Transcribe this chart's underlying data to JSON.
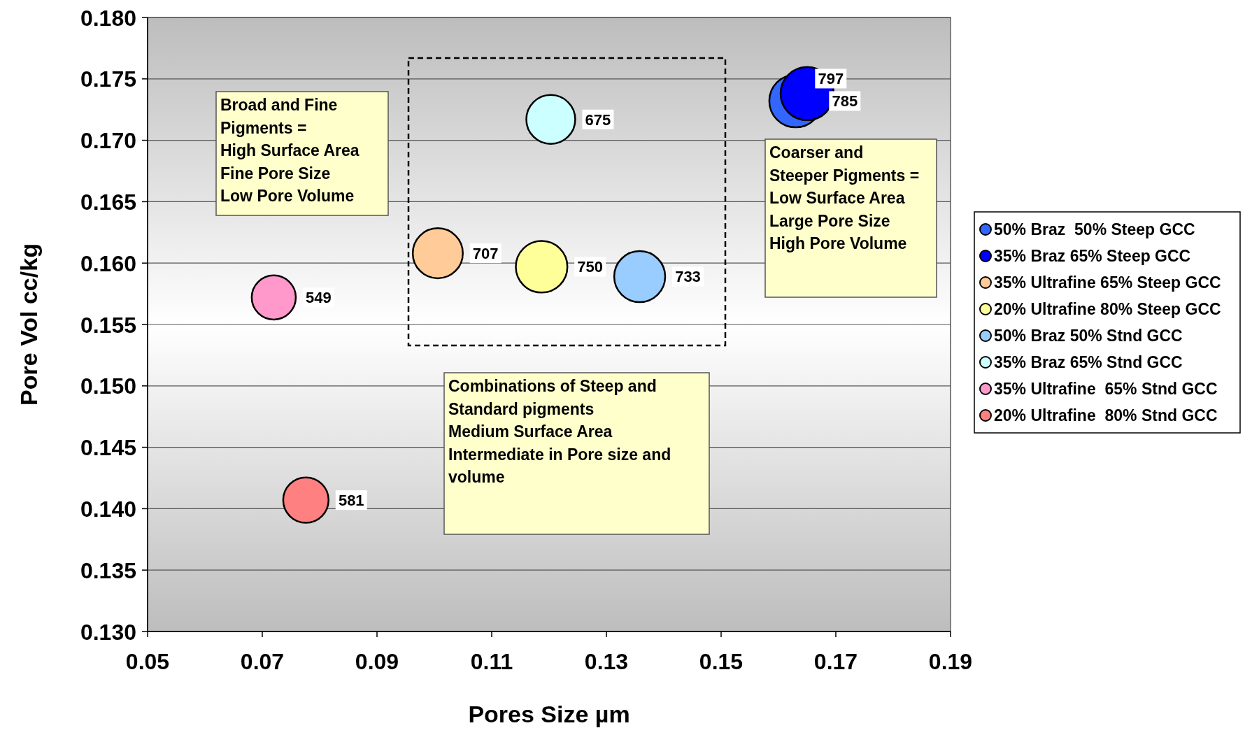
{
  "chart_data": {
    "type": "bubble",
    "xlabel": "Pores Size µm",
    "ylabel": "Pore Vol cc/kg",
    "xlim": [
      0.05,
      0.19
    ],
    "xticks": [
      0.05,
      0.07,
      0.09,
      0.11,
      0.13,
      0.15,
      0.17,
      0.19
    ],
    "ylim": [
      0.13,
      0.18
    ],
    "yticks": [
      {
        "value": 0.13,
        "label": "0.130"
      },
      {
        "value": 0.135,
        "label": "0.135"
      },
      {
        "value": 0.14,
        "label": "0.140"
      },
      {
        "value": 0.145,
        "label": "0.145"
      },
      {
        "value": 0.15,
        "label": "0.150"
      },
      {
        "value": 0.155,
        "label": "0.155"
      },
      {
        "value": 0.16,
        "label": "0.160"
      },
      {
        "value": 0.165,
        "label": "0.165"
      },
      {
        "value": 0.17,
        "label": "0.170"
      },
      {
        "value": 0.175,
        "label": "0.175"
      },
      {
        "value": 0.18,
        "label": "0.180"
      }
    ],
    "grid": "y",
    "legend": "right",
    "marker": "circle",
    "series": [
      {
        "name": "50% Braz  50% Steep GCC",
        "color": "#3366ff",
        "x": [
          0.163
        ],
        "values": [
          0.1732
        ],
        "sizes": [
          785
        ],
        "value_labels": [
          "785"
        ]
      },
      {
        "name": "35% Braz 65% Steep GCC",
        "color": "#0000ff",
        "x": [
          0.165
        ],
        "values": [
          0.1738
        ],
        "sizes": [
          797
        ],
        "value_labels": [
          "797"
        ]
      },
      {
        "name": "35% Ultrafine 65% Steep GCC",
        "color": "#ffcc99",
        "x": [
          0.1006
        ],
        "values": [
          0.1608
        ],
        "sizes": [
          707
        ],
        "value_labels": [
          "707"
        ]
      },
      {
        "name": "20% Ultrafine 80% Steep GCC",
        "color": "#ffff99",
        "x": [
          0.1187
        ],
        "values": [
          0.1597
        ],
        "sizes": [
          750
        ],
        "value_labels": [
          "750"
        ]
      },
      {
        "name": "50% Braz 50% Stnd GCC",
        "color": "#99ccff",
        "x": [
          0.1358
        ],
        "values": [
          0.1589
        ],
        "sizes": [
          733
        ],
        "value_labels": [
          "733"
        ]
      },
      {
        "name": "35% Braz 65% Stnd GCC",
        "color": "#ccffff",
        "x": [
          0.1203
        ],
        "values": [
          0.1717
        ],
        "sizes": [
          675
        ],
        "value_labels": [
          "675"
        ]
      },
      {
        "name": "35% Ultrafine  65% Stnd GCC",
        "color": "#ff99cc",
        "x": [
          0.072
        ],
        "values": [
          0.1572
        ],
        "sizes": [
          549
        ],
        "value_labels": [
          "549"
        ]
      },
      {
        "name": "20% Ultrafine  80% Stnd GCC",
        "color": "#ff8080",
        "x": [
          0.0776
        ],
        "values": [
          0.1407
        ],
        "sizes": [
          581
        ],
        "value_labels": [
          "581"
        ]
      }
    ],
    "annotations": [
      "Broad and Fine\nPigments =\nHigh Surface Area\nFine Pore Size\nLow Pore Volume",
      "Coarser and\nSteeper Pigments =\nLow Surface Area\nLarge Pore Size\nHigh Pore Volume",
      "Combinations of Steep and\nStandard pigments\nMedium Surface Area\nIntermediate in Pore size and\nvolume"
    ]
  }
}
